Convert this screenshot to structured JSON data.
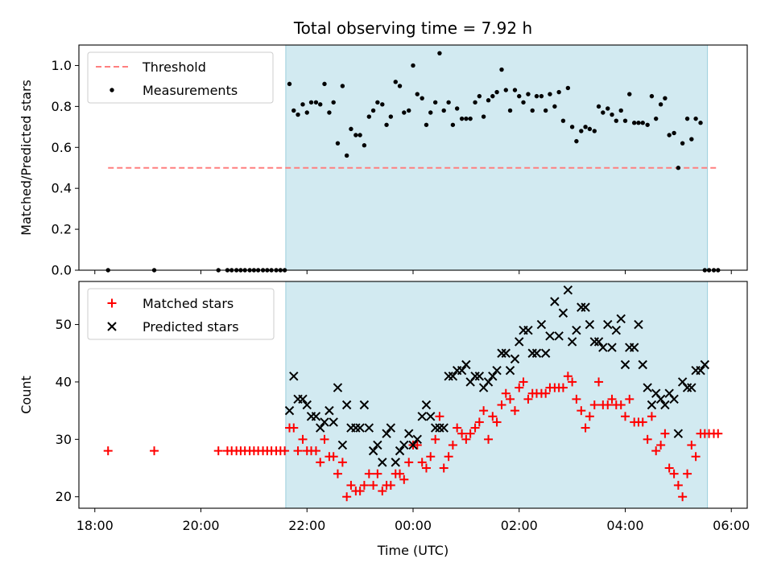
{
  "chart_data": {
    "title": "Total observing time = 7.92 h",
    "xlabel": "Time (UTC)",
    "xlim": [
      -0.3,
      12.3
    ],
    "x_tick_values": [
      0,
      2,
      4,
      6,
      8,
      10,
      12
    ],
    "x_tick_labels": [
      "18:00",
      "20:00",
      "22:00",
      "00:00",
      "02:00",
      "04:00",
      "06:00"
    ],
    "observing_window": {
      "start": 3.6,
      "end": 11.55
    },
    "panels": [
      {
        "id": "ratio",
        "type": "scatter",
        "ylabel": "Matched/Predicted stars",
        "ylim": [
          0,
          1.1
        ],
        "y_ticks": [
          0.0,
          0.2,
          0.4,
          0.6,
          0.8,
          1.0
        ],
        "y_tick_labels": [
          "0.0",
          "0.2",
          "0.4",
          "0.6",
          "0.8",
          "1.0"
        ],
        "show_x_tick_labels": false,
        "legend": {
          "position": "upper left",
          "entries": [
            {
              "label": "Threshold",
              "marker": "dashed-line",
              "color": "#ff7f7f"
            },
            {
              "label": "Measurements",
              "marker": "dot",
              "color": "#000000"
            }
          ]
        },
        "series": [
          {
            "name": "Threshold",
            "kind": "line",
            "style": "dashed",
            "color": "#ff7f7f",
            "x": [
              0.25,
              11.75
            ],
            "y": [
              0.5,
              0.5
            ]
          },
          {
            "name": "Measurements",
            "kind": "scatter",
            "marker": "dot",
            "color": "#000000",
            "x": [
              0.25,
              1.12,
              2.33,
              2.5,
              2.58,
              2.67,
              2.75,
              2.83,
              2.92,
              3.0,
              3.08,
              3.17,
              3.25,
              3.33,
              3.42,
              3.5,
              3.58,
              3.67,
              3.75,
              3.83,
              3.92,
              4.0,
              4.08,
              4.17,
              4.25,
              4.33,
              4.42,
              4.5,
              4.58,
              4.67,
              4.75,
              4.83,
              4.92,
              5.0,
              5.08,
              5.17,
              5.25,
              5.33,
              5.42,
              5.5,
              5.58,
              5.67,
              5.75,
              5.83,
              5.92,
              6.0,
              6.08,
              6.17,
              6.25,
              6.33,
              6.42,
              6.5,
              6.58,
              6.67,
              6.75,
              6.83,
              6.92,
              7.0,
              7.08,
              7.17,
              7.25,
              7.33,
              7.42,
              7.5,
              7.58,
              7.67,
              7.75,
              7.83,
              7.92,
              8.0,
              8.08,
              8.17,
              8.25,
              8.33,
              8.42,
              8.5,
              8.58,
              8.67,
              8.75,
              8.83,
              8.92,
              9.0,
              9.08,
              9.17,
              9.25,
              9.33,
              9.42,
              9.5,
              9.58,
              9.67,
              9.75,
              9.83,
              9.92,
              10.0,
              10.08,
              10.17,
              10.25,
              10.33,
              10.42,
              10.5,
              10.58,
              10.67,
              10.75,
              10.83,
              10.92,
              11.0,
              11.08,
              11.17,
              11.25,
              11.33,
              11.42,
              11.5,
              11.58,
              11.67,
              11.75
            ],
            "y": [
              0.0,
              0.0,
              0.0,
              0.0,
              0.0,
              0.0,
              0.0,
              0.0,
              0.0,
              0.0,
              0.0,
              0.0,
              0.0,
              0.0,
              0.0,
              0.0,
              0.0,
              0.91,
              0.78,
              0.76,
              0.81,
              0.77,
              0.82,
              0.82,
              0.81,
              0.91,
              0.77,
              0.82,
              0.62,
              0.9,
              0.56,
              0.69,
              0.66,
              0.66,
              0.61,
              0.75,
              0.78,
              0.82,
              0.81,
              0.71,
              0.75,
              0.92,
              0.9,
              0.77,
              0.78,
              1.0,
              0.86,
              0.84,
              0.71,
              0.77,
              0.82,
              1.06,
              0.78,
              0.82,
              0.71,
              0.79,
              0.74,
              0.74,
              0.74,
              0.82,
              0.85,
              0.75,
              0.83,
              0.85,
              0.87,
              0.98,
              0.88,
              0.78,
              0.88,
              0.85,
              0.82,
              0.86,
              0.78,
              0.85,
              0.85,
              0.78,
              0.86,
              0.8,
              0.87,
              0.73,
              0.89,
              0.7,
              0.63,
              0.68,
              0.7,
              0.69,
              0.68,
              0.8,
              0.77,
              0.79,
              0.76,
              0.73,
              0.78,
              0.73,
              0.86,
              0.72,
              0.72,
              0.72,
              0.71,
              0.85,
              0.74,
              0.81,
              0.84,
              0.66,
              0.67,
              0.5,
              0.62,
              0.74,
              0.64,
              0.74,
              0.72,
              0.0,
              0.0,
              0.0,
              0.0
            ]
          }
        ]
      },
      {
        "id": "counts",
        "type": "scatter",
        "ylabel": "Count",
        "ylim": [
          18,
          57.5
        ],
        "y_ticks": [
          20,
          30,
          40,
          50
        ],
        "y_tick_labels": [
          "20",
          "30",
          "40",
          "50"
        ],
        "show_x_tick_labels": true,
        "legend": {
          "position": "upper left",
          "entries": [
            {
              "label": "Matched stars",
              "marker": "plus",
              "color": "#ff0000"
            },
            {
              "label": "Predicted stars",
              "marker": "x",
              "color": "#000000"
            }
          ]
        },
        "series": [
          {
            "name": "Matched stars",
            "kind": "scatter",
            "marker": "plus",
            "color": "#ff0000",
            "x": [
              0.25,
              1.12,
              2.33,
              2.5,
              2.58,
              2.67,
              2.75,
              2.83,
              2.92,
              3.0,
              3.08,
              3.17,
              3.25,
              3.33,
              3.42,
              3.5,
              3.58,
              3.67,
              3.75,
              3.83,
              3.92,
              4.0,
              4.08,
              4.17,
              4.25,
              4.33,
              4.42,
              4.5,
              4.58,
              4.67,
              4.75,
              4.83,
              4.92,
              5.0,
              5.08,
              5.17,
              5.25,
              5.33,
              5.42,
              5.5,
              5.58,
              5.67,
              5.75,
              5.83,
              5.92,
              6.0,
              6.08,
              6.17,
              6.25,
              6.33,
              6.42,
              6.5,
              6.58,
              6.67,
              6.75,
              6.83,
              6.92,
              7.0,
              7.08,
              7.17,
              7.25,
              7.33,
              7.42,
              7.5,
              7.58,
              7.67,
              7.75,
              7.83,
              7.92,
              8.0,
              8.08,
              8.17,
              8.25,
              8.33,
              8.42,
              8.5,
              8.58,
              8.67,
              8.75,
              8.83,
              8.92,
              9.0,
              9.08,
              9.17,
              9.25,
              9.33,
              9.42,
              9.5,
              9.58,
              9.67,
              9.75,
              9.83,
              9.92,
              10.0,
              10.08,
              10.17,
              10.25,
              10.33,
              10.42,
              10.5,
              10.58,
              10.67,
              10.75,
              10.83,
              10.92,
              11.0,
              11.08,
              11.17,
              11.25,
              11.33,
              11.42,
              11.5,
              11.58,
              11.67,
              11.75
            ],
            "y": [
              28,
              28,
              28,
              28,
              28,
              28,
              28,
              28,
              28,
              28,
              28,
              28,
              28,
              28,
              28,
              28,
              28,
              32,
              32,
              28,
              30,
              28,
              28,
              28,
              26,
              30,
              27,
              27,
              24,
              26,
              20,
              22,
              21,
              21,
              22,
              24,
              22,
              24,
              21,
              22,
              22,
              24,
              24,
              23,
              26,
              29,
              29,
              26,
              25,
              27,
              30,
              34,
              25,
              27,
              29,
              32,
              31,
              30,
              31,
              32,
              33,
              35,
              30,
              34,
              33,
              36,
              38,
              37,
              35,
              39,
              40,
              37,
              38,
              38,
              38,
              38,
              39,
              39,
              39,
              39,
              41,
              40,
              37,
              35,
              32,
              34,
              36,
              40,
              36,
              36,
              37,
              36,
              36,
              34,
              37,
              33,
              33,
              33,
              30,
              34,
              28,
              29,
              31,
              25,
              24,
              22,
              20,
              24,
              29,
              27,
              31,
              31,
              31,
              31,
              31
            ],
            "plotted_point_count": 115
          },
          {
            "name": "Predicted stars",
            "kind": "scatter",
            "marker": "x",
            "color": "#000000",
            "x": [
              3.67,
              3.75,
              3.83,
              3.92,
              4.0,
              4.08,
              4.17,
              4.25,
              4.33,
              4.42,
              4.5,
              4.58,
              4.67,
              4.75,
              4.83,
              4.92,
              5.0,
              5.08,
              5.17,
              5.25,
              5.33,
              5.42,
              5.5,
              5.58,
              5.67,
              5.75,
              5.83,
              5.92,
              6.0,
              6.08,
              6.17,
              6.25,
              6.33,
              6.42,
              6.5,
              6.58,
              6.67,
              6.75,
              6.83,
              6.92,
              7.0,
              7.08,
              7.17,
              7.25,
              7.33,
              7.42,
              7.5,
              7.58,
              7.67,
              7.75,
              7.83,
              7.92,
              8.0,
              8.08,
              8.17,
              8.25,
              8.33,
              8.42,
              8.5,
              8.58,
              8.67,
              8.75,
              8.83,
              8.92,
              9.0,
              9.08,
              9.17,
              9.25,
              9.33,
              9.42,
              9.5,
              9.58,
              9.67,
              9.75,
              9.83,
              9.92,
              10.0,
              10.08,
              10.17,
              10.25,
              10.33,
              10.42,
              10.5,
              10.58,
              10.67,
              10.75,
              10.83,
              10.92,
              11.0,
              11.08,
              11.17,
              11.25,
              11.33,
              11.42,
              11.5
            ],
            "y": [
              35,
              41,
              37,
              37,
              36,
              34,
              34,
              32,
              33,
              35,
              33,
              39,
              29,
              36,
              32,
              32,
              32,
              36,
              32,
              28,
              29,
              26,
              31,
              32,
              26,
              28,
              29,
              31,
              29,
              30,
              34,
              36,
              34,
              32,
              32,
              32,
              41,
              41,
              42,
              42,
              43,
              40,
              41,
              41,
              39,
              40,
              41,
              42,
              45,
              45,
              42,
              44,
              47,
              49,
              49,
              45,
              45,
              50,
              45,
              48,
              54,
              48,
              52,
              56,
              47,
              49,
              53,
              53,
              50,
              47,
              47,
              46,
              50,
              46,
              49,
              51,
              43,
              46,
              46,
              50,
              43,
              39,
              36,
              38,
              37,
              36,
              38,
              37,
              31,
              40,
              39,
              39,
              42,
              42,
              43
            ]
          }
        ]
      }
    ]
  }
}
